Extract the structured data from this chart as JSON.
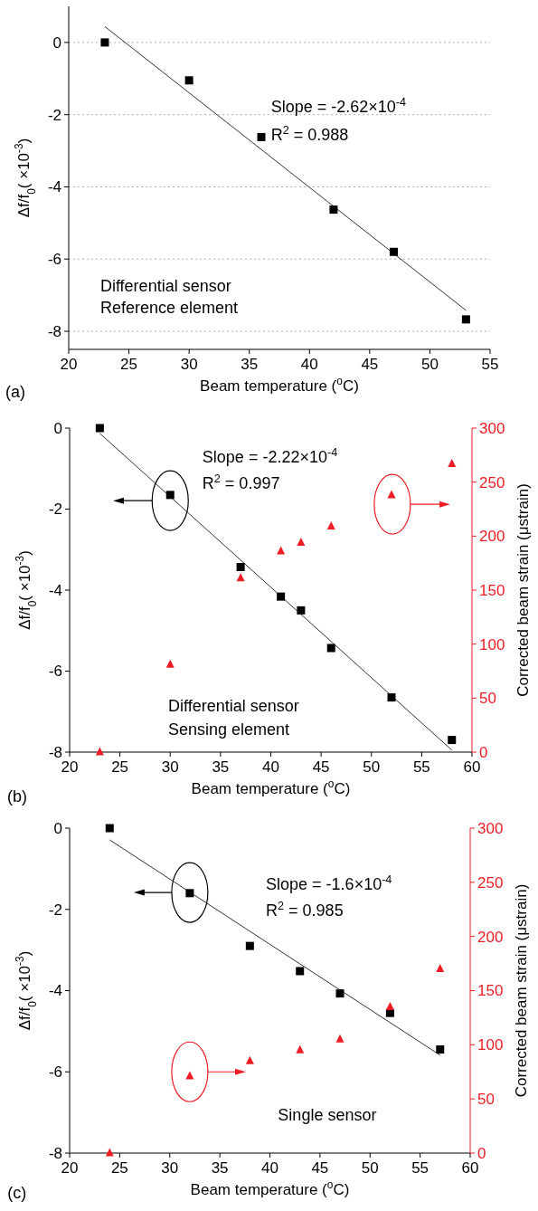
{
  "chart_data": [
    {
      "type": "scatter",
      "xlabel": "Beam temperature ($^{o}$C)",
      "ylabel": "Δf/f$_{0}$( ×10$^{-3}$)",
      "xlim": [
        20,
        55
      ],
      "xticks": [
        20,
        25,
        30,
        35,
        40,
        45,
        50,
        55
      ],
      "ylim": [
        -8.5,
        1
      ],
      "yticks": [
        -8,
        -6,
        -4,
        -2,
        0
      ],
      "grid": "y",
      "annotations": [
        "Slope = -2.62×10$^{-4}$",
        "R$^{2}$ = 0.988",
        "Differential sensor",
        "Reference element",
        "(a)"
      ],
      "series": [
        {
          "marker": "square",
          "color": "#000000",
          "x": [
            23,
            30,
            36,
            42,
            47,
            53
          ],
          "values": [
            0,
            -1.05,
            -2.62,
            -4.63,
            -5.8,
            -7.67
          ]
        },
        {
          "type": "line",
          "color": "#333333",
          "x": [
            23,
            53
          ],
          "values": [
            0.44,
            -7.42
          ]
        }
      ]
    },
    {
      "type": "scatter",
      "xlabel": "Beam temperature ($^{o}$C)",
      "ylabel": "Δf/f$_{0}$( ×10$^{-3}$)",
      "y2label": "Corrected beam strain (μstrain)",
      "xlim": [
        20,
        60
      ],
      "xticks": [
        20,
        25,
        30,
        35,
        40,
        45,
        50,
        55,
        60
      ],
      "ylim": [
        -8,
        0
      ],
      "yticks": [
        -8,
        -6,
        -4,
        -2,
        0
      ],
      "y2lim": [
        0,
        300
      ],
      "y2ticks": [
        0,
        50,
        100,
        150,
        200,
        250,
        300
      ],
      "annotations": [
        "Slope = -2.22×10$^{-4}$",
        "R$^{2}$ = 0.997",
        "Differential sensor",
        "Sensing element",
        "(b)"
      ],
      "series": [
        {
          "marker": "square",
          "color": "#000000",
          "x": [
            23,
            30,
            37,
            41,
            43,
            46,
            52,
            58
          ],
          "values": [
            0,
            -1.65,
            -3.43,
            -4.16,
            -4.5,
            -5.43,
            -6.65,
            -7.7
          ]
        },
        {
          "type": "line",
          "color": "#333333",
          "x": [
            23,
            58
          ],
          "values": [
            -0.13,
            -7.95
          ]
        },
        {
          "marker": "triangle",
          "axis": "y2",
          "color": "#ee1c24",
          "x": [
            23,
            30,
            37,
            41,
            43,
            46,
            52,
            58
          ],
          "values": [
            0,
            81,
            161,
            186,
            194,
            209,
            238,
            267
          ]
        }
      ]
    },
    {
      "type": "scatter",
      "xlabel": "Beam temperature ($^{o}$C)",
      "ylabel": "Δf/f$_{0}$( ×10$^{-3}$)",
      "y2label": "Corrected beam strain (μstrain)",
      "xlim": [
        20,
        60
      ],
      "xticks": [
        20,
        25,
        30,
        35,
        40,
        45,
        50,
        55,
        60
      ],
      "ylim": [
        -8,
        0
      ],
      "yticks": [
        -8,
        -6,
        -4,
        -2,
        0
      ],
      "y2lim": [
        0,
        300
      ],
      "y2ticks": [
        0,
        50,
        100,
        150,
        200,
        250,
        300
      ],
      "annotations": [
        "Slope = -1.6×10$^{-4}$",
        "R$^{2}$ = 0.985",
        "Single sensor",
        "(c)"
      ],
      "series": [
        {
          "marker": "square",
          "color": "#000000",
          "x": [
            24,
            32,
            38,
            43,
            47,
            52,
            57
          ],
          "values": [
            0,
            -1.6,
            -2.9,
            -3.52,
            -4.07,
            -4.55,
            -5.45
          ]
        },
        {
          "type": "line",
          "color": "#333333",
          "x": [
            24,
            57
          ],
          "values": [
            -0.29,
            -5.59
          ]
        },
        {
          "marker": "triangle",
          "axis": "y2",
          "color": "#ee1c24",
          "x": [
            24,
            32,
            38,
            43,
            47,
            52,
            57
          ],
          "values": [
            0,
            71,
            85,
            95,
            105,
            135,
            170
          ]
        }
      ]
    }
  ]
}
